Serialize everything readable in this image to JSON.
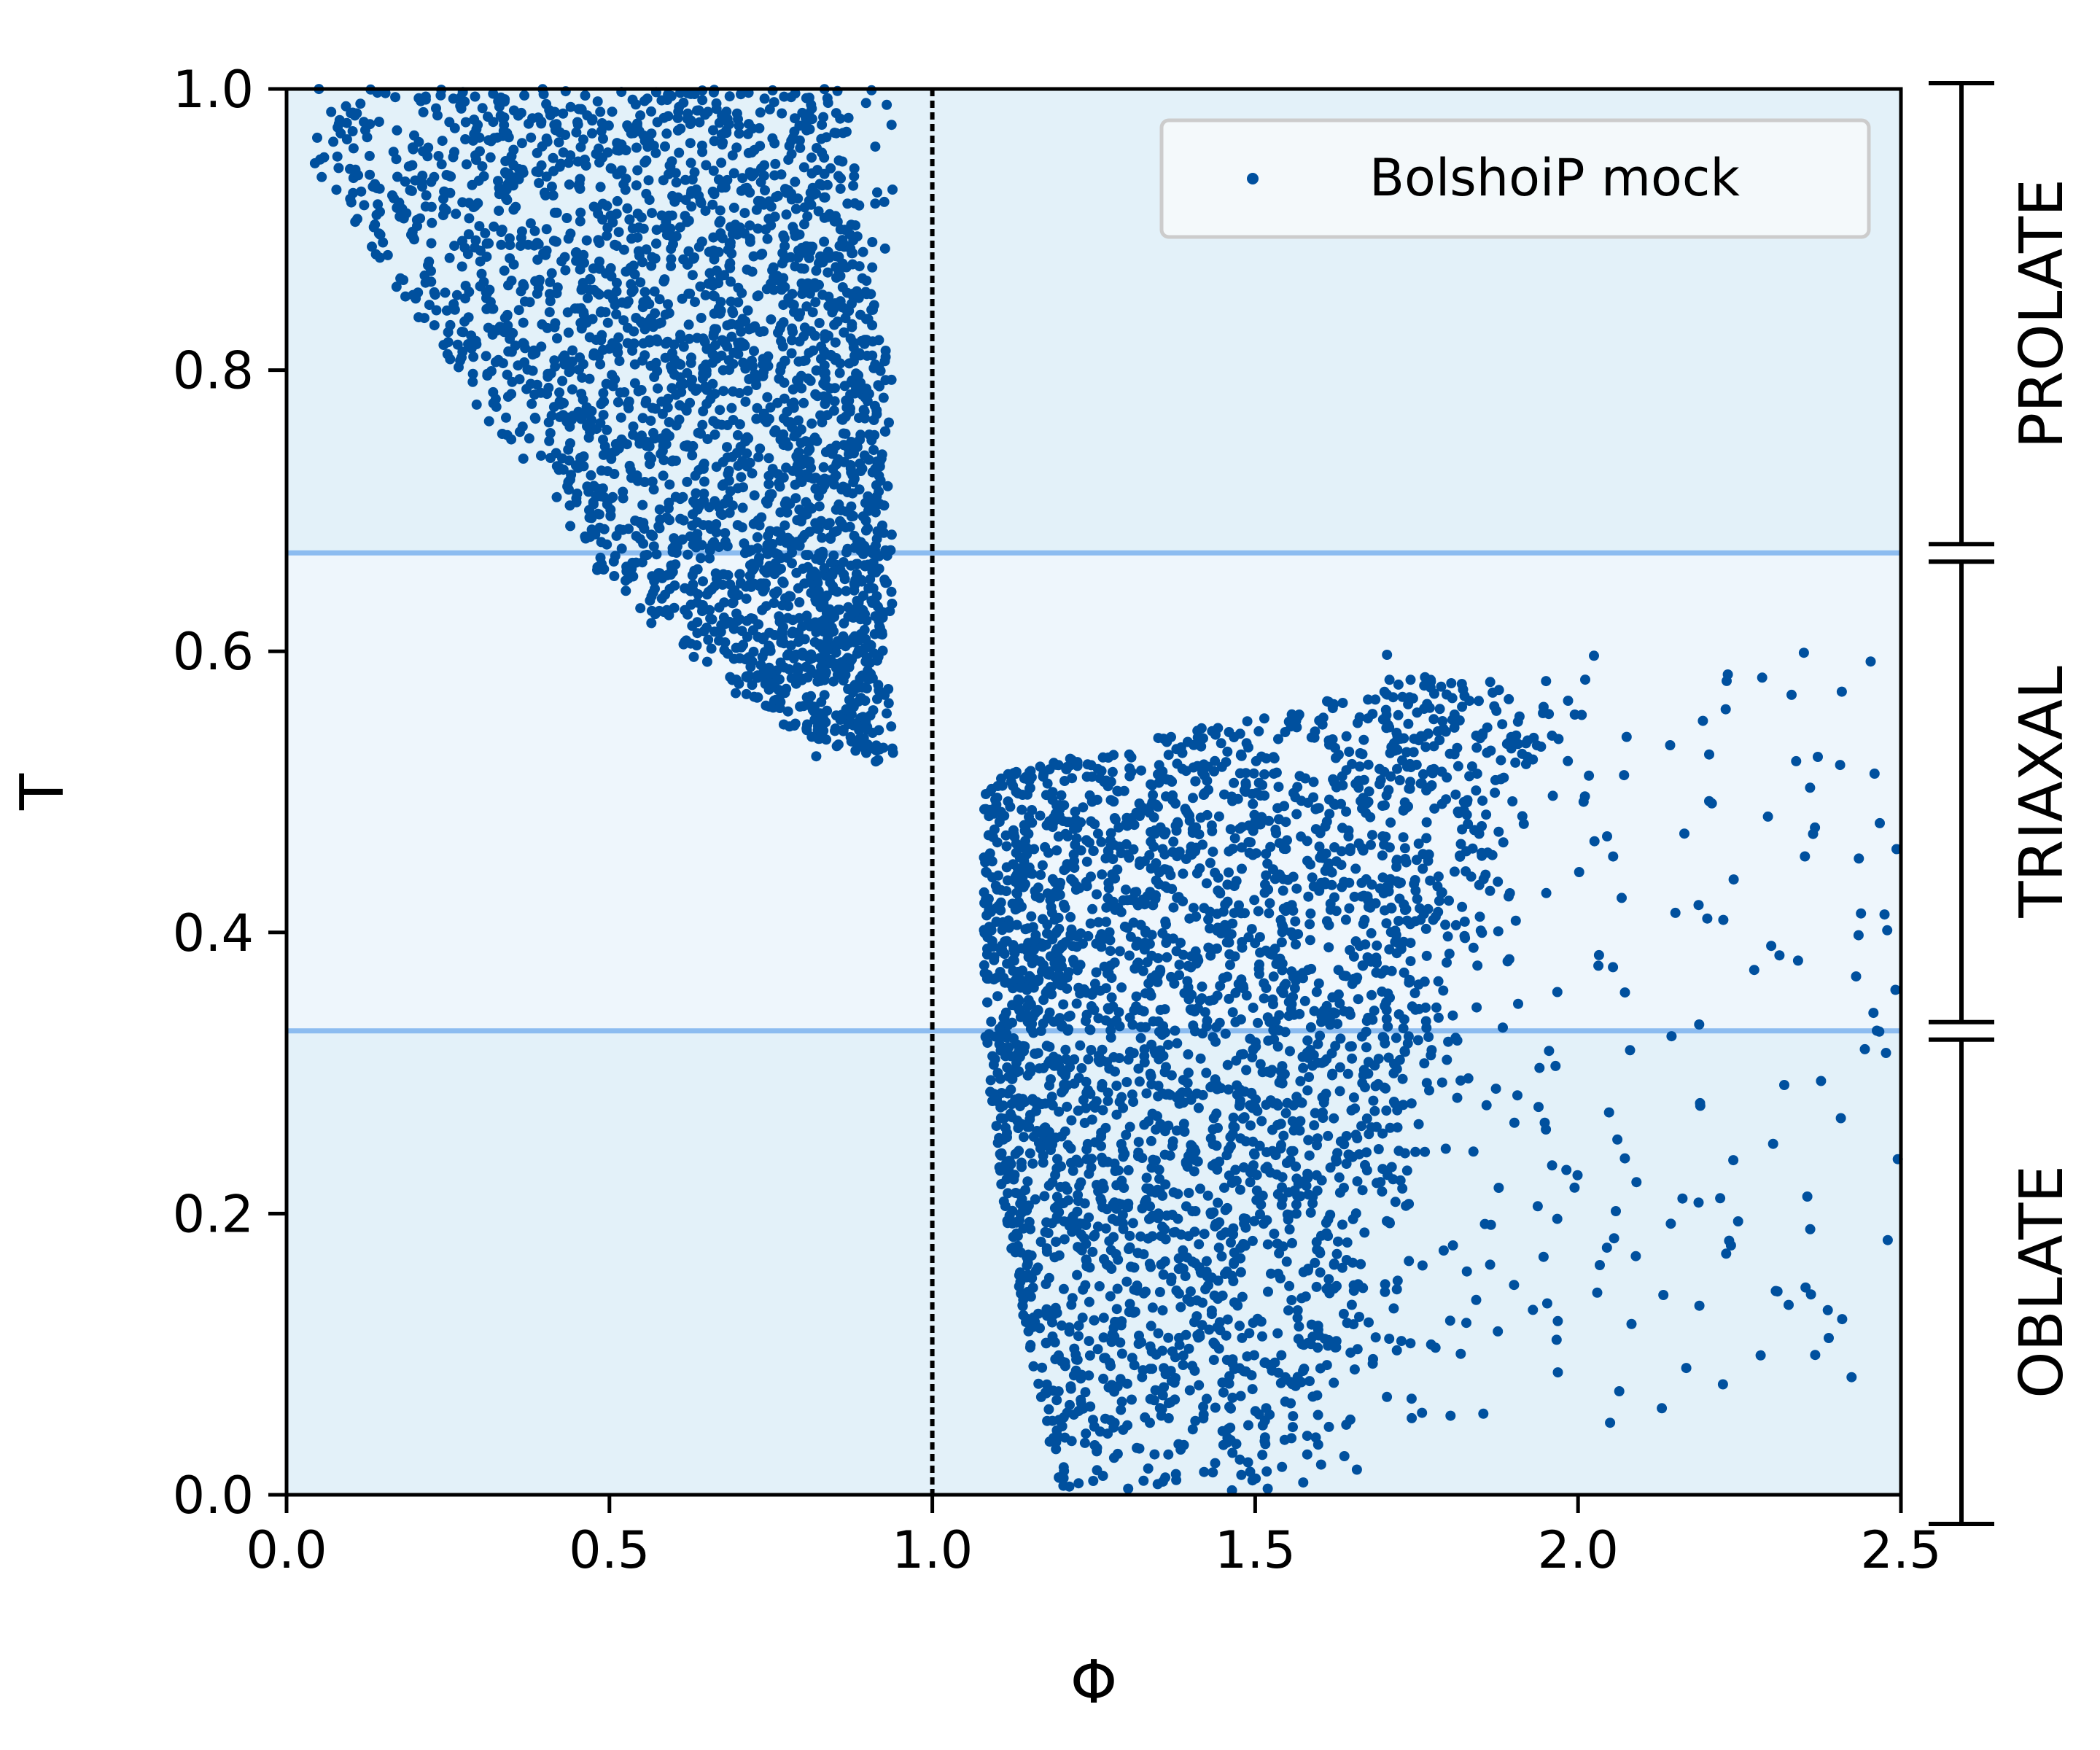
{
  "chart_data": {
    "type": "scatter",
    "xlabel": "Φ",
    "ylabel": "T",
    "xlim": [
      0.0,
      2.5
    ],
    "ylim": [
      0.0,
      1.0
    ],
    "xticks": [
      "0.0",
      "0.5",
      "1.0",
      "1.5",
      "2.0",
      "2.5"
    ],
    "yticks": [
      "0.0",
      "0.2",
      "0.4",
      "0.6",
      "0.8",
      "1.0"
    ],
    "grid": false,
    "legend": {
      "placement": "top-right",
      "entries": [
        "BolshoiP mock"
      ]
    },
    "series": [
      {
        "name": "BolshoiP mock",
        "color": "#00509e",
        "clusters": [
          {
            "description_points": [
              [
                0.05,
                1.0
              ],
              [
                0.3,
                0.9
              ],
              [
                0.45,
                0.72
              ],
              [
                0.55,
                0.62
              ],
              [
                0.7,
                0.56
              ],
              [
                0.9,
                0.52
              ],
              [
                0.92,
                0.8
              ],
              [
                0.75,
                1.0
              ],
              [
                0.6,
                0.85
              ],
              [
                0.7,
                0.7
              ]
            ]
          },
          {
            "description_points": [
              [
                1.08,
                0.51
              ],
              [
                1.3,
                0.54
              ],
              [
                1.6,
                0.57
              ],
              [
                1.8,
                0.59
              ],
              [
                1.1,
                0.35
              ],
              [
                1.2,
                0.15
              ],
              [
                1.3,
                0.02
              ],
              [
                1.4,
                0.1
              ],
              [
                1.5,
                0.3
              ],
              [
                1.7,
                0.4
              ],
              [
                2.0,
                0.58
              ],
              [
                2.2,
                0.55
              ],
              [
                2.4,
                0.6
              ],
              [
                2.5,
                0.4
              ],
              [
                2.5,
                0.19
              ]
            ]
          }
        ]
      }
    ],
    "reference_lines": {
      "vertical_dashed_x": 1.0,
      "horizontal_y": [
        0.33,
        0.67
      ]
    },
    "regions": [
      {
        "label": "PROLATE",
        "y_range": [
          0.67,
          1.0
        ]
      },
      {
        "label": "TRIAXAL",
        "y_range": [
          0.33,
          0.67
        ]
      },
      {
        "label": "OBLATE",
        "y_range": [
          0.0,
          0.33
        ]
      }
    ],
    "colors": {
      "points": "#00509e",
      "band_outer": "#e3f1f9",
      "band_middle": "#eef6fc",
      "hlines": "#8cbcf0",
      "vline": "#000000"
    }
  }
}
